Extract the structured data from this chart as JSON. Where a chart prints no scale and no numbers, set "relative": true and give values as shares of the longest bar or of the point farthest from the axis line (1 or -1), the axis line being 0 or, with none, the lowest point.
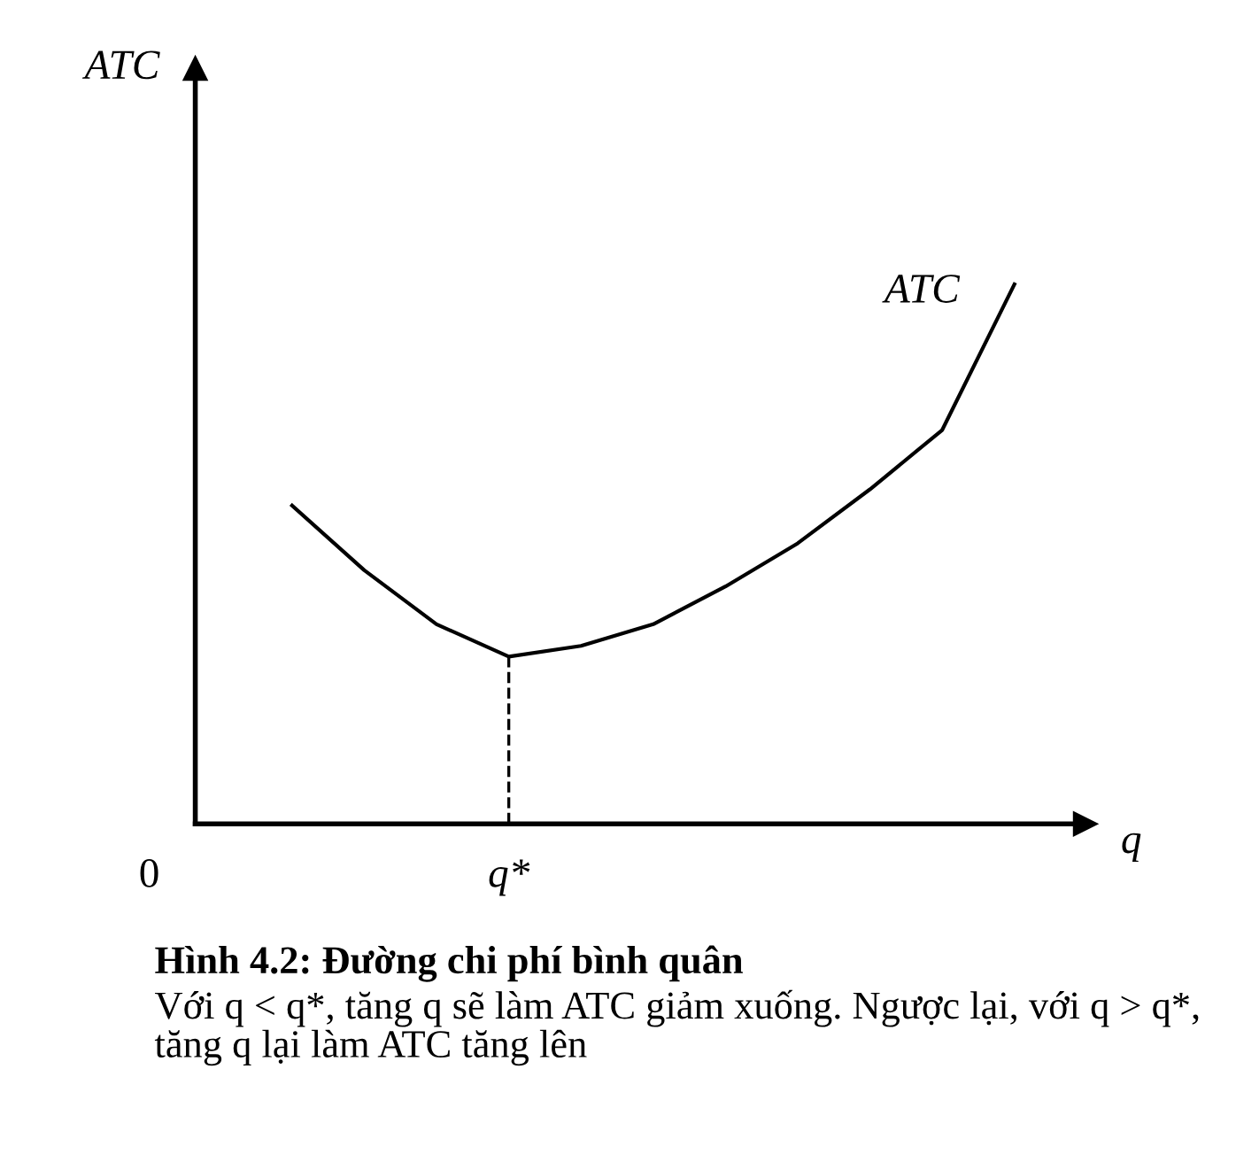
{
  "chart_data": {
    "type": "line",
    "relative": true,
    "title": "Hình 4.2: Đường chi phí bình quân",
    "xlabel": "q",
    "ylabel": "ATC",
    "categories": [
      null,
      null,
      null,
      null,
      null,
      null,
      null,
      null,
      null,
      null,
      null
    ],
    "series": [
      {
        "name": "ATC",
        "color": "#000000",
        "values": [
          0.59,
          0.47,
          0.37,
          0.31,
          0.33,
          0.37,
          0.44,
          0.52,
          0.62,
          0.73,
          1.0
        ]
      }
    ],
    "annotations": [
      "0",
      "Với q < q*, tăng q sẽ làm ATC giảm xuống. Ngược lại, với q > q*, tăng q lại làm ATC tăng lên",
      "q*"
    ],
    "grid": false,
    "legend": false,
    "marker": "none",
    "line_style": "solid"
  }
}
